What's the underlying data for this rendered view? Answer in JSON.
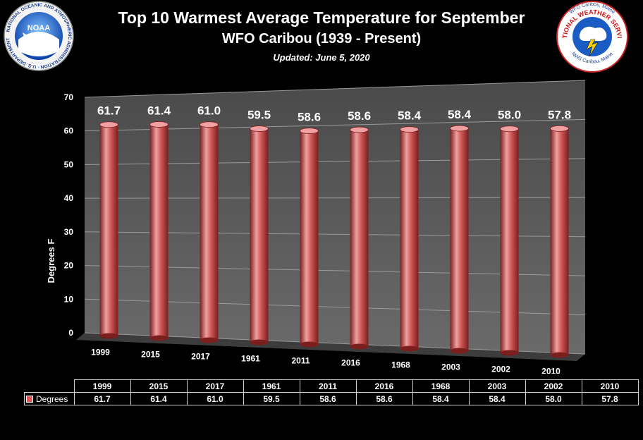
{
  "header": {
    "title": "Top 10 Warmest Average Temperature for September",
    "subtitle": "WFO Caribou (1939 - Present)",
    "updated": "Updated:  June 5, 2020"
  },
  "logos": {
    "noaa": {
      "center_text": "NOAA",
      "ring_text": "NATIONAL OCEANIC AND ATMOSPHERIC ADMINISTRATION · U.S. DEPARTMENT OF COMMERCE"
    },
    "nws": {
      "top_text": "WFO Caribou, Maine",
      "arc_text": "NATIONAL WEATHER SERVICE",
      "bottom_text": "NWS Caribou, Maine"
    }
  },
  "colors": {
    "bar": "#d05858",
    "bar_dark": "#7a1e1e",
    "bar_light": "#f0a0a0",
    "wall": "#5a5a5a",
    "floor": "#3c3c3c",
    "grid": "#9a9a9a"
  },
  "chart_data": {
    "type": "bar",
    "title": "Top 10 Warmest Average Temperature for September",
    "subtitle": "WFO Caribou (1939 - Present)",
    "ylabel": "Degrees F",
    "xlabel": "",
    "categories": [
      "1999",
      "2015",
      "2017",
      "1961",
      "2011",
      "2016",
      "1968",
      "2003",
      "2002",
      "2010"
    ],
    "series": [
      {
        "name": "Degrees",
        "values": [
          61.7,
          61.4,
          61.0,
          59.5,
          58.6,
          58.6,
          58.4,
          58.4,
          58.0,
          57.8
        ]
      }
    ],
    "value_labels": [
      "61.7",
      "61.4",
      "61.0",
      "59.5",
      "58.6",
      "58.6",
      "58.4",
      "58.4",
      "58.0",
      "57.8"
    ],
    "y_ticks": [
      "0",
      "10",
      "20",
      "30",
      "40",
      "50",
      "60",
      "70"
    ],
    "ylim": [
      0,
      70
    ],
    "grid": true,
    "legend": "data table"
  }
}
